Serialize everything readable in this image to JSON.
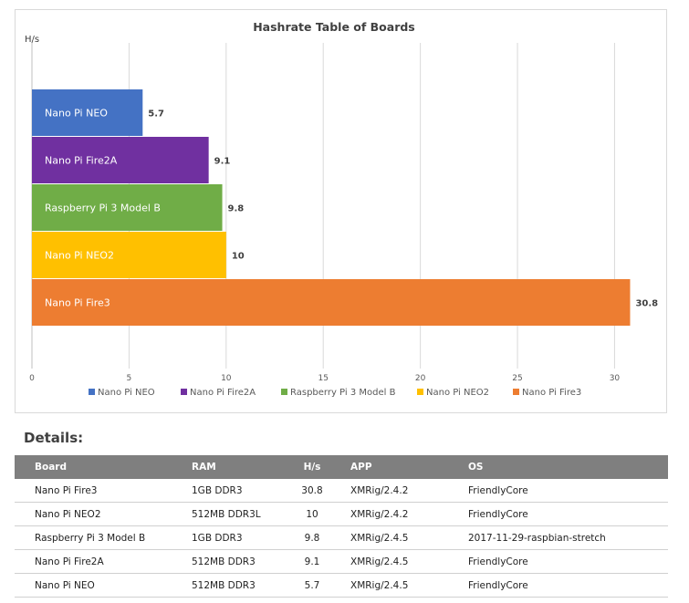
{
  "chart_data": {
    "type": "bar",
    "orientation": "horizontal",
    "title": "Hashrate Table of Boards",
    "ylabel": "H/s",
    "xlim": [
      0,
      32
    ],
    "xticks": [
      0,
      5,
      10,
      15,
      20,
      25,
      30
    ],
    "grid": "vertical",
    "legend_position": "bottom",
    "series": [
      {
        "name": "Nano Pi NEO",
        "value": 5.7,
        "color": "#4472c4"
      },
      {
        "name": "Nano Pi Fire2A",
        "value": 9.1,
        "color": "#7030a0"
      },
      {
        "name": "Raspberry Pi 3 Model B",
        "value": 9.8,
        "color": "#70ad47"
      },
      {
        "name": "Nano Pi NEO2",
        "value": 10,
        "color": "#ffc000"
      },
      {
        "name": "Nano Pi Fire3",
        "value": 30.8,
        "color": "#ed7d31"
      }
    ]
  },
  "details": {
    "title": "Details:",
    "headers": [
      "Board",
      "RAM",
      "H/s",
      "APP",
      "OS"
    ],
    "rows": [
      [
        "Nano Pi Fire3",
        "1GB DDR3",
        "30.8",
        "XMRig/2.4.2",
        "FriendlyCore"
      ],
      [
        "Nano Pi NEO2",
        "512MB DDR3L",
        "10",
        "XMRig/2.4.2",
        "FriendlyCore"
      ],
      [
        "Raspberry Pi 3 Model B",
        "1GB DDR3",
        "9.8",
        "XMRig/2.4.5",
        "2017-11-29-raspbian-stretch"
      ],
      [
        "Nano Pi Fire2A",
        "512MB DDR3",
        "9.1",
        "XMRig/2.4.5",
        "FriendlyCore"
      ],
      [
        "Nano Pi NEO",
        "512MB DDR3",
        "5.7",
        "XMRig/2.4.5",
        "FriendlyCore"
      ]
    ]
  }
}
